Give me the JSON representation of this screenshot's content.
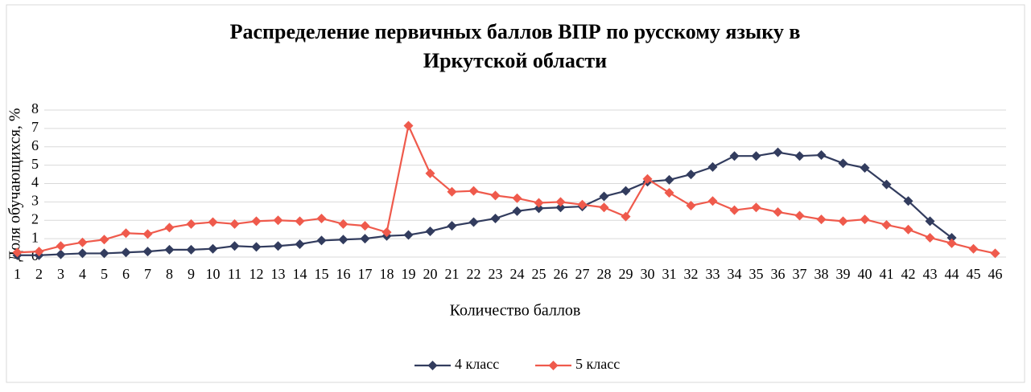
{
  "chart_data": {
    "type": "line",
    "title": [
      "Распределение первичных баллов ВПР по русскому языку       в",
      "Иркутской области"
    ],
    "x_label": "Количество баллов",
    "y_label": "Доля обучающихся, %",
    "categories": [
      1,
      2,
      3,
      4,
      5,
      6,
      7,
      8,
      9,
      10,
      11,
      12,
      13,
      14,
      15,
      16,
      17,
      18,
      19,
      20,
      21,
      22,
      23,
      24,
      25,
      26,
      27,
      28,
      29,
      30,
      31,
      32,
      33,
      34,
      35,
      36,
      37,
      38,
      39,
      40,
      41,
      42,
      43,
      44,
      45,
      46
    ],
    "series": [
      {
        "name": "4 класс",
        "color": "#323c5e",
        "values": [
          0.1,
          0.1,
          0.15,
          0.2,
          0.2,
          0.25,
          0.3,
          0.4,
          0.4,
          0.45,
          0.6,
          0.55,
          0.6,
          0.7,
          0.9,
          0.95,
          1.0,
          1.15,
          1.2,
          1.4,
          1.7,
          1.9,
          2.1,
          2.5,
          2.65,
          2.7,
          2.75,
          3.3,
          3.6,
          4.1,
          4.2,
          4.5,
          4.9,
          5.5,
          5.5,
          5.7,
          5.5,
          5.55,
          5.1,
          4.85,
          3.95,
          3.05,
          1.95,
          1.05,
          null,
          null
        ]
      },
      {
        "name": "5 класс",
        "color": "#ef5a4c",
        "values": [
          0.25,
          0.3,
          0.6,
          0.8,
          0.95,
          1.3,
          1.25,
          1.6,
          1.8,
          1.9,
          1.8,
          1.95,
          2.0,
          1.95,
          2.1,
          1.8,
          1.7,
          1.35,
          7.15,
          4.55,
          3.55,
          3.6,
          3.35,
          3.2,
          2.95,
          3.0,
          2.85,
          2.7,
          2.2,
          4.25,
          3.5,
          2.8,
          3.05,
          2.55,
          2.7,
          2.45,
          2.25,
          2.05,
          1.95,
          2.05,
          1.75,
          1.5,
          1.05,
          0.75,
          0.45,
          0.2
        ]
      }
    ],
    "ylim": [
      0,
      8
    ],
    "yticks": [
      0,
      1,
      2,
      3,
      4,
      5,
      6,
      7,
      8
    ],
    "grid": true,
    "legend": "bottom"
  }
}
